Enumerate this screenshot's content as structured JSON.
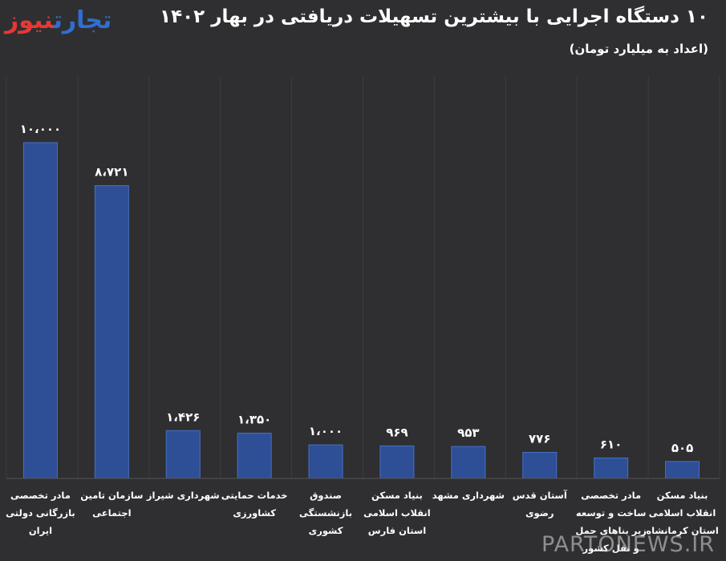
{
  "header": {
    "logo_part1": "نیوز",
    "logo_part2": "تجارت",
    "title": "۱۰ دستگاه اجرایی با بیشترین تسهیلات دریافتی در بهار ۱۴۰۲",
    "subtitle": "(اعداد به میلیارد تومان)"
  },
  "watermark": "PARTONEWS.IR",
  "colors": {
    "background": "#2f2f31",
    "bar": "#2e4f96",
    "bar_edge": "#4670c4",
    "logo_blue": "#2f6fd3",
    "logo_red": "#e53935"
  },
  "chart_data": {
    "type": "bar",
    "title": "۱۰ دستگاه اجرایی با بیشترین تسهیلات دریافتی در بهار ۱۴۰۲",
    "subtitle": "(اعداد به میلیارد تومان)",
    "xlabel": "",
    "ylabel": "",
    "ylim": [
      0,
      10000
    ],
    "grid": "vertical",
    "categories": [
      [
        "مادر تخصصی",
        "بازرگانی دولتی",
        "ایران"
      ],
      [
        "سازمان تامین",
        "اجتماعی"
      ],
      [
        "شهرداری شیراز"
      ],
      [
        "خدمات حمایتی",
        "کشاورزی"
      ],
      [
        "صندوق",
        "بازنشستگی",
        "کشوری"
      ],
      [
        "بنیاد مسکن",
        "انقلاب اسلامی",
        "استان فارس"
      ],
      [
        "شهرداری مشهد"
      ],
      [
        "آستان قدس",
        "رضوی"
      ],
      [
        "مادر تخصصی",
        "ساخت و توسعه",
        "زیر بناهای حمل",
        "و نقل کشور"
      ],
      [
        "بنیاد مسکن",
        "انقلاب اسلامی",
        "استان کرمانشاه"
      ]
    ],
    "values": [
      10000,
      8721,
      1426,
      1350,
      1000,
      969,
      953,
      776,
      610,
      505
    ],
    "value_labels": [
      "۱۰،۰۰۰",
      "۸،۷۲۱",
      "۱،۴۲۶",
      "۱،۳۵۰",
      "۱،۰۰۰",
      "۹۶۹",
      "۹۵۳",
      "۷۷۶",
      "۶۱۰",
      "۵۰۵"
    ]
  }
}
